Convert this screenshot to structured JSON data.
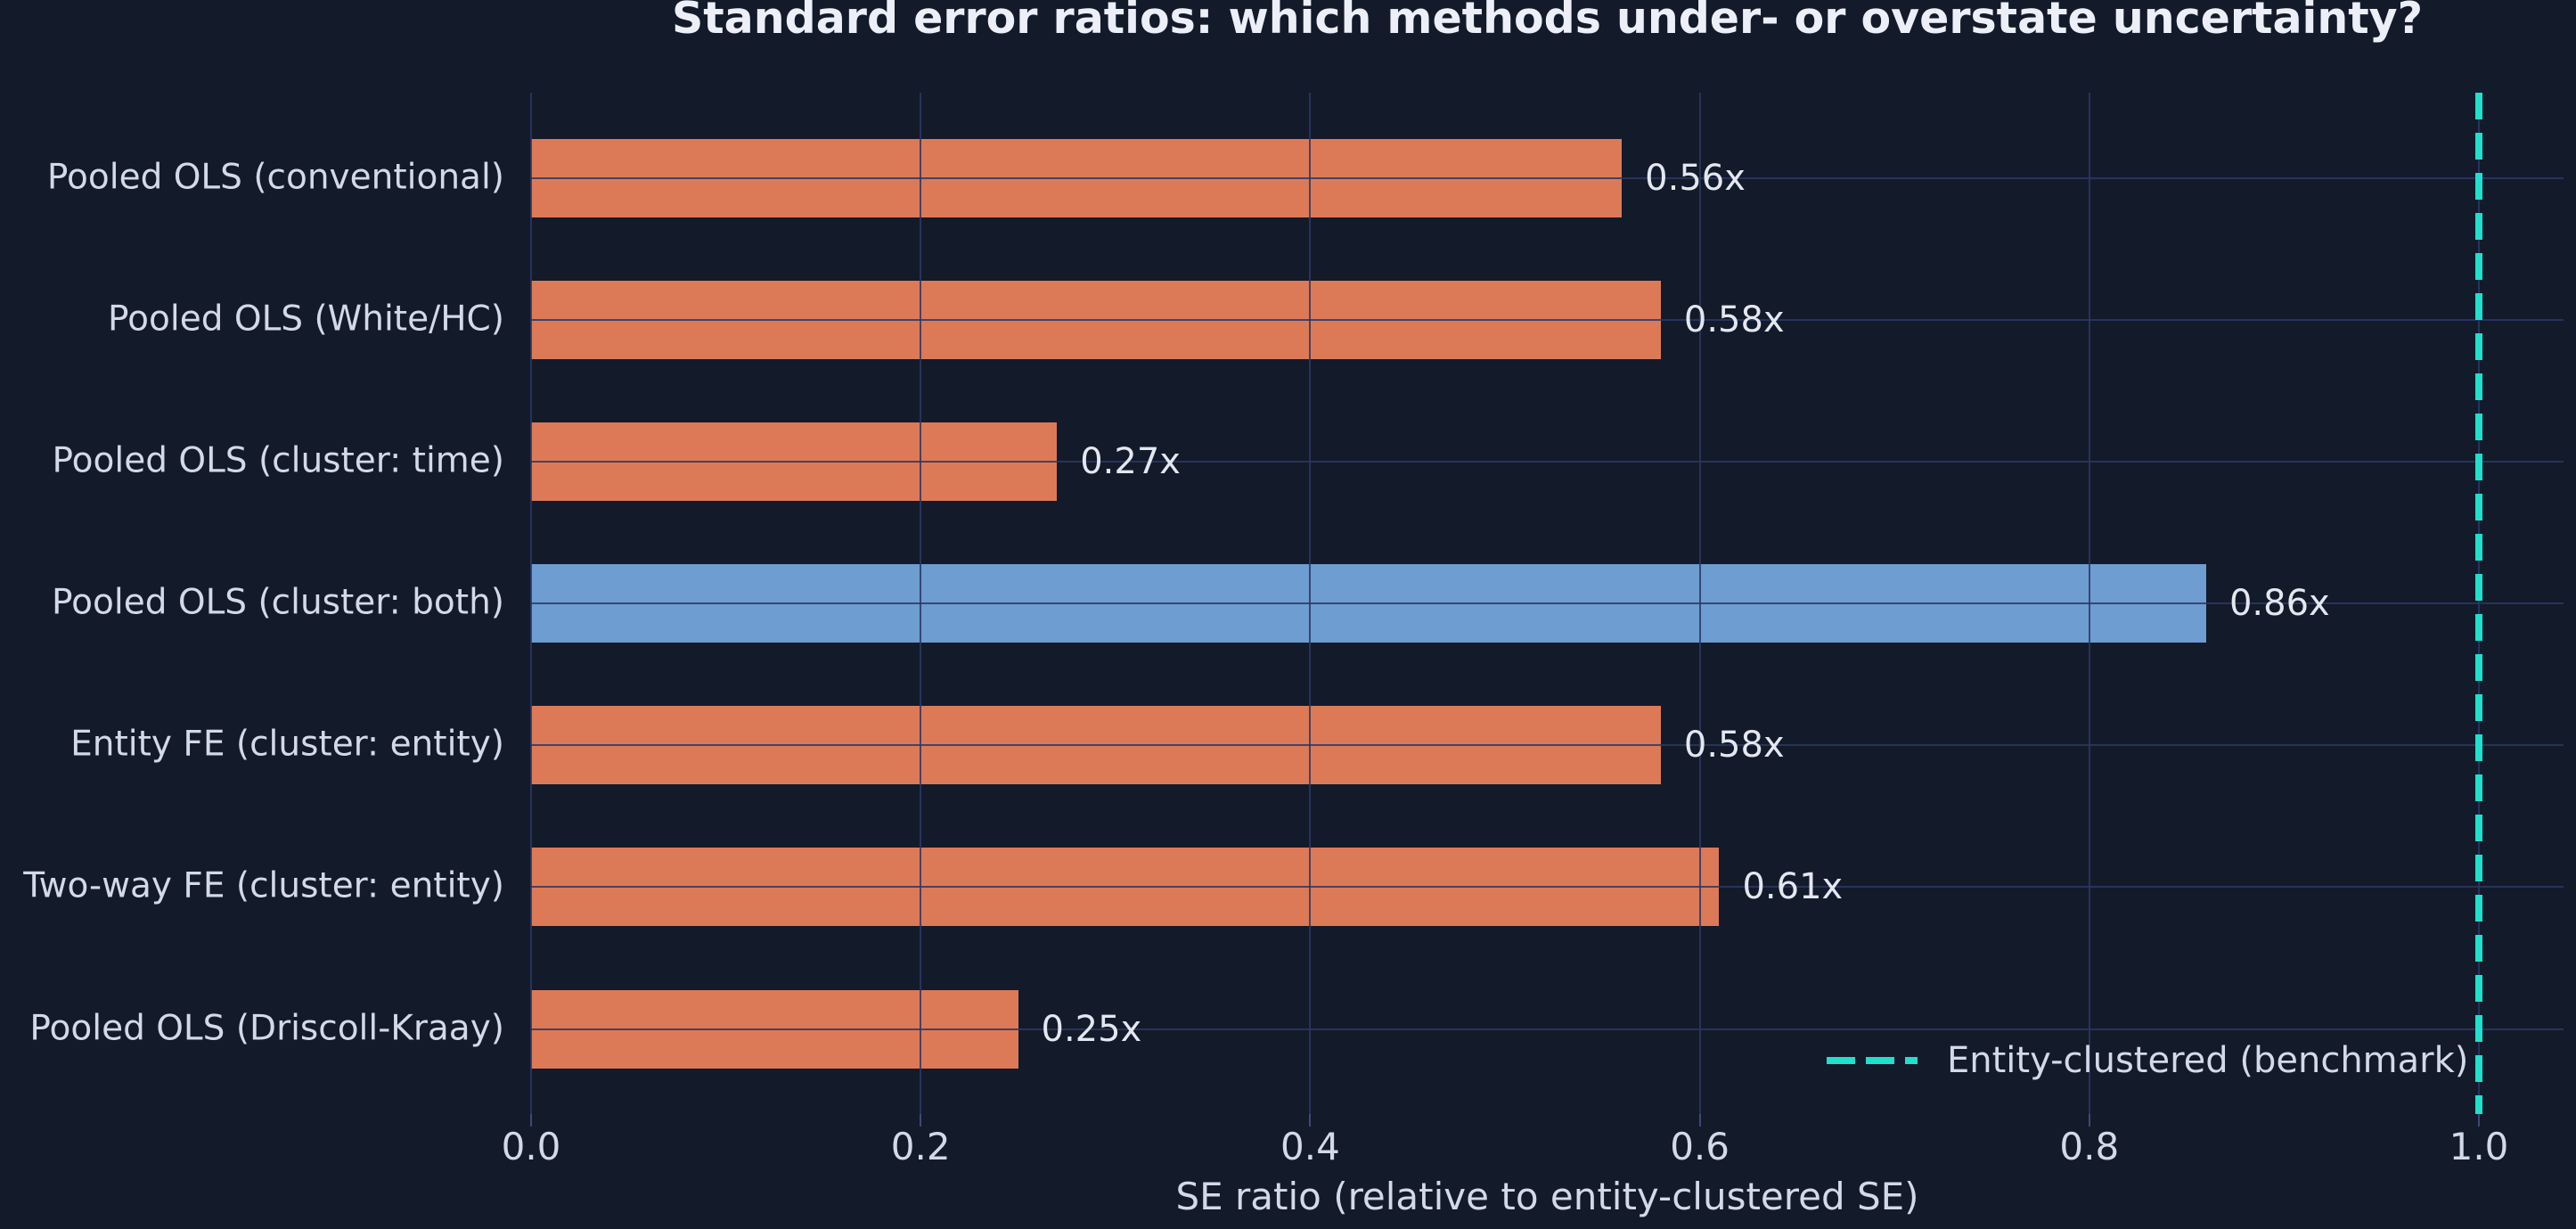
{
  "chart_data": {
    "type": "bar",
    "orientation": "horizontal",
    "title": "Standard error ratios: which methods under- or overstate uncertainty?",
    "xlabel": "SE ratio (relative to entity-clustered SE)",
    "categories": [
      "Pooled OLS (conventional)",
      "Pooled OLS (White/HC)",
      "Pooled OLS (cluster: time)",
      "Pooled OLS (cluster: both)",
      "Entity FE (cluster: entity)",
      "Two-way FE (cluster: entity)",
      "Pooled OLS (Driscoll-Kraay)"
    ],
    "values": [
      0.56,
      0.58,
      0.27,
      0.86,
      0.58,
      0.61,
      0.25
    ],
    "bar_labels": [
      "0.56x",
      "0.58x",
      "0.27x",
      "0.86x",
      "0.58x",
      "0.61x",
      "0.25x"
    ],
    "bar_colors": [
      "#dc7a58",
      "#dc7a58",
      "#dc7a58",
      "#6d9dd1",
      "#dc7a58",
      "#dc7a58",
      "#dc7a58"
    ],
    "highlighted_category_index": 3,
    "xticks": [
      "0.0",
      "0.2",
      "0.4",
      "0.6",
      "0.8",
      "1.0"
    ],
    "xtick_values": [
      0.0,
      0.2,
      0.4,
      0.6,
      0.8,
      1.0
    ],
    "xlim": [
      0.0,
      1.0435
    ],
    "grid": true,
    "benchmark": {
      "value": 1.0,
      "label": "Entity-clustered (benchmark)",
      "style": "dashed"
    },
    "legend_position": "lower right",
    "colors": {
      "background": "#131a2a",
      "bar_default": "#dc7a58",
      "bar_highlight": "#6d9dd1",
      "benchmark_line": "#1fe0cb",
      "gridline": "#2b3864",
      "text": "#d3d9e6",
      "title_text": "#eceff7"
    }
  }
}
